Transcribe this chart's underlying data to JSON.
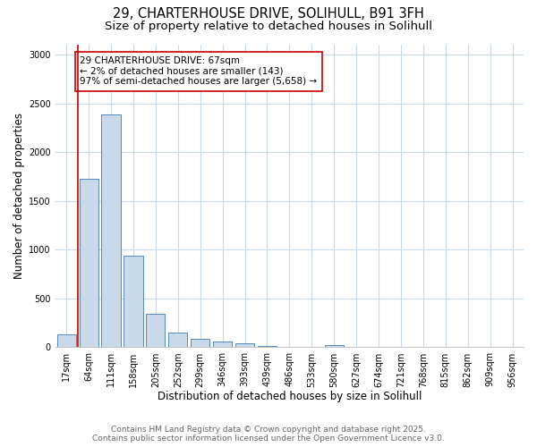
{
  "title_line1": "29, CHARTERHOUSE DRIVE, SOLIHULL, B91 3FH",
  "title_line2": "Size of property relative to detached houses in Solihull",
  "xlabel": "Distribution of detached houses by size in Solihull",
  "ylabel": "Number of detached properties",
  "bar_labels": [
    "17sqm",
    "64sqm",
    "111sqm",
    "158sqm",
    "205sqm",
    "252sqm",
    "299sqm",
    "346sqm",
    "393sqm",
    "439sqm",
    "486sqm",
    "533sqm",
    "580sqm",
    "627sqm",
    "674sqm",
    "721sqm",
    "768sqm",
    "815sqm",
    "862sqm",
    "909sqm",
    "956sqm"
  ],
  "bar_values": [
    130,
    1730,
    2390,
    940,
    340,
    155,
    85,
    55,
    40,
    18,
    8,
    0,
    25,
    0,
    0,
    0,
    0,
    0,
    0,
    0,
    0
  ],
  "bar_color": "#c8daea",
  "bar_edgecolor": "#5588bb",
  "vline_color": "#cc0000",
  "annotation_text": "29 CHARTERHOUSE DRIVE: 67sqm\n← 2% of detached houses are smaller (143)\n97% of semi-detached houses are larger (5,658) →",
  "annotation_box_color": "#ffffff",
  "annotation_box_edgecolor": "#cc0000",
  "ylim": [
    0,
    3100
  ],
  "yticks": [
    0,
    500,
    1000,
    1500,
    2000,
    2500,
    3000
  ],
  "footer_line1": "Contains HM Land Registry data © Crown copyright and database right 2025.",
  "footer_line2": "Contains public sector information licensed under the Open Government Licence v3.0.",
  "background_color": "#ffffff",
  "plot_background": "#ffffff",
  "grid_color": "#c8daea",
  "title_fontsize": 10.5,
  "subtitle_fontsize": 9.5,
  "axis_label_fontsize": 8.5,
  "tick_fontsize": 7,
  "footer_fontsize": 6.5,
  "annotation_fontsize": 7.5
}
